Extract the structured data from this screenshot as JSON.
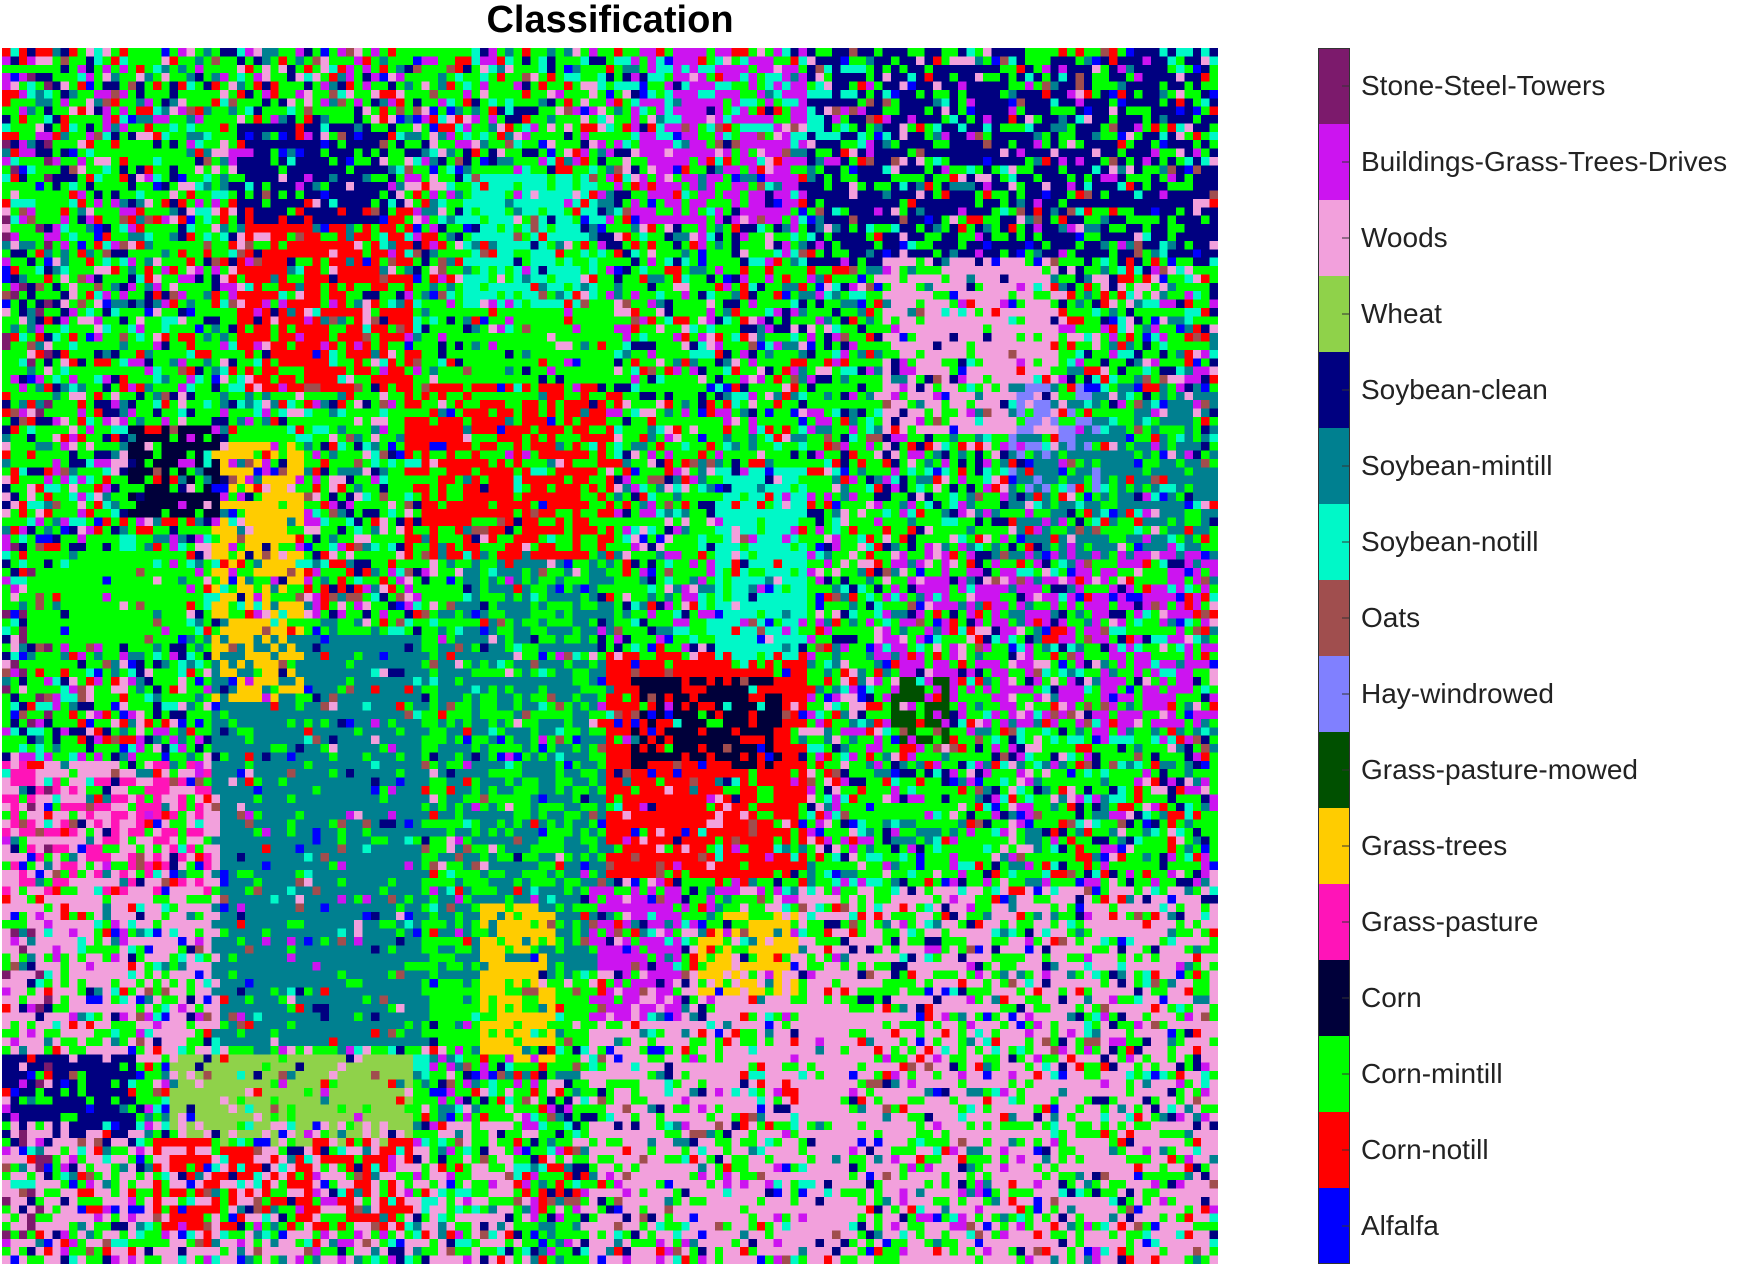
{
  "title": "Classification",
  "classes": [
    {
      "name": "Stone-Steel-Towers",
      "color": "#7c1a6c"
    },
    {
      "name": "Buildings-Grass-Trees-Drives",
      "color": "#cc14f0"
    },
    {
      "name": "Woods",
      "color": "#f2a0dc"
    },
    {
      "name": "Wheat",
      "color": "#8fd24a"
    },
    {
      "name": "Soybean-clean",
      "color": "#000080"
    },
    {
      "name": "Soybean-mintill",
      "color": "#008090"
    },
    {
      "name": "Soybean-notill",
      "color": "#00f8c8"
    },
    {
      "name": "Oats",
      "color": "#a04e4e"
    },
    {
      "name": "Hay-windrowed",
      "color": "#8080ff"
    },
    {
      "name": "Grass-pasture-mowed",
      "color": "#005000"
    },
    {
      "name": "Grass-trees",
      "color": "#ffcc00"
    },
    {
      "name": "Grass-pasture",
      "color": "#ff14b8"
    },
    {
      "name": "Corn",
      "color": "#00003a"
    },
    {
      "name": "Corn-mintill",
      "color": "#00ff00"
    },
    {
      "name": "Corn-notill",
      "color": "#ff0000"
    },
    {
      "name": "Alfalfa",
      "color": "#0000ff"
    }
  ]
}
